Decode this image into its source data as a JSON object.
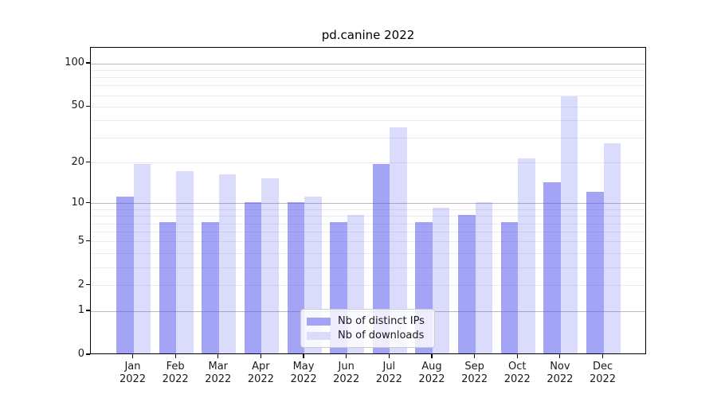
{
  "chart_data": {
    "type": "bar",
    "title": "pd.canine 2022",
    "categories": [
      "Jan 2022",
      "Feb 2022",
      "Mar 2022",
      "Apr 2022",
      "May 2022",
      "Jun 2022",
      "Jul 2022",
      "Aug 2022",
      "Sep 2022",
      "Oct 2022",
      "Nov 2022",
      "Dec 2022"
    ],
    "series": [
      {
        "name": "Nb of distinct IPs",
        "color": "#5a5af0",
        "alpha": 0.55,
        "values": [
          11,
          7,
          7,
          10,
          10,
          7,
          19,
          7,
          8,
          7,
          14,
          12
        ]
      },
      {
        "name": "Nb of downloads",
        "color": "#5a5af0",
        "alpha": 0.22,
        "values": [
          19,
          17,
          16,
          15,
          11,
          8,
          35,
          9,
          10,
          21,
          58,
          27
        ]
      }
    ],
    "y_axis": {
      "scale": "log1p",
      "tick_values": [
        0,
        1,
        2,
        5,
        10,
        20,
        50,
        100
      ],
      "tick_labels": [
        "0",
        "1",
        "2",
        "5",
        "10",
        "20",
        "50",
        "100"
      ],
      "axis_top_value": 129,
      "major_gridlines": [
        1,
        10,
        100
      ],
      "minor_gridlines": [
        2,
        3,
        4,
        5,
        6,
        7,
        8,
        9,
        20,
        30,
        40,
        50,
        60,
        70,
        80,
        90
      ]
    },
    "x_axis": {
      "label_line_2": "2022"
    },
    "legend": {
      "position": "bottom-center"
    },
    "colors": {
      "bar_ips_appearance": "#a3a3f1",
      "bar_downloads_appearance": "#d9d9f7",
      "major_grid": "#b9b9b9",
      "minor_grid": "#ececec",
      "axis_line": "#000000",
      "text": "#1a1a1a",
      "legend_border": "#cccccc"
    },
    "ylim": [
      0,
      129
    ],
    "grid": "on"
  }
}
